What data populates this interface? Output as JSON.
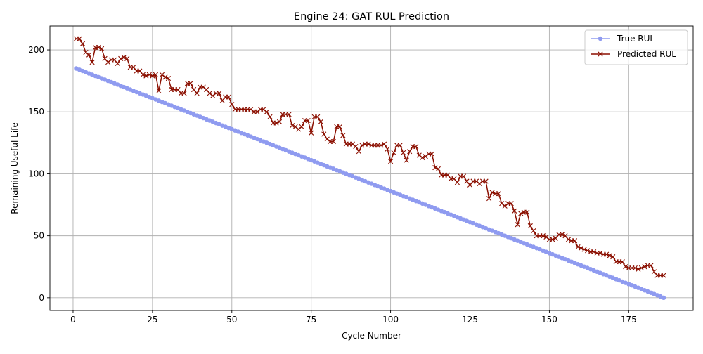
{
  "chart_data": {
    "type": "line",
    "title": "Engine 24: GAT RUL Prediction",
    "xlabel": "Cycle Number",
    "ylabel": "Remaining Useful Life",
    "xlim": [
      -7.3,
      195.3
    ],
    "ylim": [
      -10.3,
      219.3
    ],
    "xticks": [
      0,
      25,
      50,
      75,
      100,
      125,
      150,
      175
    ],
    "yticks": [
      0,
      50,
      100,
      150,
      200
    ],
    "grid": true,
    "legend_position": "top-right",
    "x": [
      1,
      2,
      3,
      4,
      5,
      6,
      7,
      8,
      9,
      10,
      11,
      12,
      13,
      14,
      15,
      16,
      17,
      18,
      19,
      20,
      21,
      22,
      23,
      24,
      25,
      26,
      27,
      28,
      29,
      30,
      31,
      32,
      33,
      34,
      35,
      36,
      37,
      38,
      39,
      40,
      41,
      42,
      43,
      44,
      45,
      46,
      47,
      48,
      49,
      50,
      51,
      52,
      53,
      54,
      55,
      56,
      57,
      58,
      59,
      60,
      61,
      62,
      63,
      64,
      65,
      66,
      67,
      68,
      69,
      70,
      71,
      72,
      73,
      74,
      75,
      76,
      77,
      78,
      79,
      80,
      81,
      82,
      83,
      84,
      85,
      86,
      87,
      88,
      89,
      90,
      91,
      92,
      93,
      94,
      95,
      96,
      97,
      98,
      99,
      100,
      101,
      102,
      103,
      104,
      105,
      106,
      107,
      108,
      109,
      110,
      111,
      112,
      113,
      114,
      115,
      116,
      117,
      118,
      119,
      120,
      121,
      122,
      123,
      124,
      125,
      126,
      127,
      128,
      129,
      130,
      131,
      132,
      133,
      134,
      135,
      136,
      137,
      138,
      139,
      140,
      141,
      142,
      143,
      144,
      145,
      146,
      147,
      148,
      149,
      150,
      151,
      152,
      153,
      154,
      155,
      156,
      157,
      158,
      159,
      160,
      161,
      162,
      163,
      164,
      165,
      166,
      167,
      168,
      169,
      170,
      171,
      172,
      173,
      174,
      175,
      176,
      177,
      178,
      179,
      180,
      181,
      182,
      183,
      184,
      185,
      186
    ],
    "series": [
      {
        "name": "True RUL",
        "color": "#8f9bf0",
        "marker": "circle",
        "values": [
          185,
          184,
          183,
          182,
          181,
          180,
          179,
          178,
          177,
          176,
          175,
          174,
          173,
          172,
          171,
          170,
          169,
          168,
          167,
          166,
          165,
          164,
          163,
          162,
          161,
          160,
          159,
          158,
          157,
          156,
          155,
          154,
          153,
          152,
          151,
          150,
          149,
          148,
          147,
          146,
          145,
          144,
          143,
          142,
          141,
          140,
          139,
          138,
          137,
          136,
          135,
          134,
          133,
          132,
          131,
          130,
          129,
          128,
          127,
          126,
          125,
          124,
          123,
          122,
          121,
          120,
          119,
          118,
          117,
          116,
          115,
          114,
          113,
          112,
          111,
          110,
          109,
          108,
          107,
          106,
          105,
          104,
          103,
          102,
          101,
          100,
          99,
          98,
          97,
          96,
          95,
          94,
          93,
          92,
          91,
          90,
          89,
          88,
          87,
          86,
          85,
          84,
          83,
          82,
          81,
          80,
          79,
          78,
          77,
          76,
          75,
          74,
          73,
          72,
          71,
          70,
          69,
          68,
          67,
          66,
          65,
          64,
          63,
          62,
          61,
          60,
          59,
          58,
          57,
          56,
          55,
          54,
          53,
          52,
          51,
          50,
          49,
          48,
          47,
          46,
          45,
          44,
          43,
          42,
          41,
          40,
          39,
          38,
          37,
          36,
          35,
          34,
          33,
          32,
          31,
          30,
          29,
          28,
          27,
          26,
          25,
          24,
          23,
          22,
          21,
          20,
          19,
          18,
          17,
          16,
          15,
          14,
          13,
          12,
          11,
          10,
          9,
          8,
          7,
          6,
          5,
          4,
          3,
          2,
          1,
          0
        ]
      },
      {
        "name": "Predicted RUL",
        "color": "#8b0f00",
        "marker": "x",
        "values": [
          209,
          209,
          205,
          198,
          196,
          190,
          202,
          202,
          201,
          193,
          190,
          192,
          192,
          189,
          193,
          194,
          193,
          186,
          186,
          183,
          183,
          180,
          179,
          180,
          179,
          180,
          167,
          180,
          178,
          177,
          168,
          168,
          168,
          165,
          165,
          173,
          173,
          168,
          165,
          170,
          170,
          168,
          165,
          163,
          165,
          165,
          159,
          162,
          162,
          156,
          152,
          152,
          152,
          152,
          152,
          152,
          150,
          150,
          152,
          152,
          150,
          146,
          141,
          141,
          142,
          148,
          148,
          148,
          139,
          138,
          136,
          138,
          143,
          143,
          133,
          146,
          146,
          142,
          132,
          128,
          126,
          126,
          138,
          138,
          131,
          124,
          124,
          124,
          122,
          118,
          123,
          124,
          124,
          123,
          123,
          123,
          123,
          124,
          120,
          110,
          117,
          123,
          123,
          117,
          111,
          118,
          122,
          122,
          115,
          113,
          114,
          116,
          116,
          105,
          104,
          99,
          99,
          99,
          96,
          96,
          93,
          98,
          98,
          94,
          91,
          94,
          94,
          92,
          94,
          94,
          80,
          85,
          84,
          84,
          76,
          74,
          76,
          76,
          70,
          59,
          68,
          69,
          69,
          58,
          54,
          50,
          50,
          50,
          49,
          47,
          47,
          48,
          51,
          51,
          50,
          47,
          46,
          46,
          41,
          40,
          39,
          38,
          37,
          37,
          36,
          36,
          35,
          35,
          34,
          33,
          29,
          29,
          29,
          25,
          24,
          24,
          24,
          23,
          24,
          25,
          26,
          26,
          21,
          18,
          18,
          18
        ]
      }
    ]
  }
}
